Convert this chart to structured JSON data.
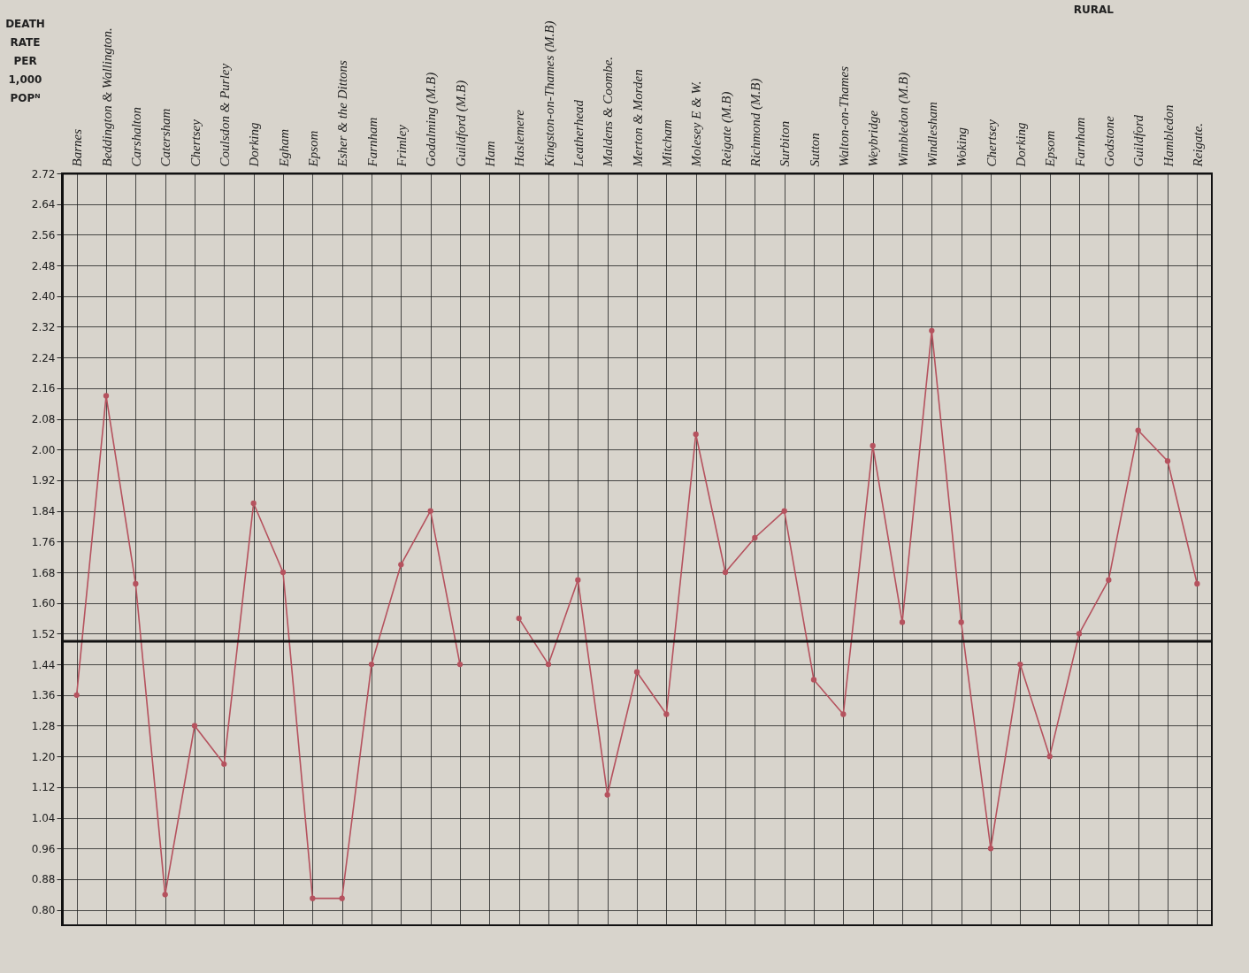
{
  "chart_data": {
    "type": "line",
    "ylabel": "DEATH RATE PER 1,000 POPᴺ",
    "categories": [
      "Barnes",
      "Beddington & Wallington.",
      "Carshalton",
      "Catersham",
      "Chertsey",
      "Coulsdon & Purley",
      "Dorking",
      "Egham",
      "Epsom",
      "Esher & the Dittons",
      "Farnham",
      "Frimley",
      "Godalming (M.B)",
      "Guildford (M.B)",
      "Ham",
      "Haslemere",
      "Kingston-on-Thames (M.B)",
      "Leatherhead",
      "Maldens & Coombe.",
      "Merton & Morden",
      "Mitcham",
      "Molesey E & W.",
      "Reigate (M.B)",
      "Richmond (M.B)",
      "Surbiton",
      "Sutton",
      "Walton-on-Thames",
      "Weybridge",
      "Wimbledon (M.B)",
      "Windlesham",
      "Woking",
      "Chertsey",
      "Dorking",
      "Epsom",
      "Farnham",
      "Godstone",
      "Guildford",
      "Hambledon",
      "Reigate."
    ],
    "series": [
      {
        "color": "#b5525e",
        "values": [
          1.36,
          2.14,
          1.65,
          0.84,
          1.28,
          1.18,
          1.86,
          1.68,
          0.83,
          0.83,
          1.44,
          1.7,
          1.84,
          1.44,
          null,
          1.56,
          1.44,
          1.66,
          1.1,
          1.42,
          1.31,
          2.04,
          1.68,
          1.77,
          1.84,
          1.4,
          1.31,
          2.01,
          1.55,
          2.31,
          1.55,
          0.96,
          1.44,
          1.2,
          1.52,
          1.66,
          2.05,
          1.97,
          1.65
        ]
      }
    ],
    "ylim": [
      0.76,
      2.72
    ],
    "yticks": [
      {
        "value": 0.8,
        "label": "0.80"
      },
      0.88,
      0.96,
      1.04,
      1.12,
      {
        "value": 1.2,
        "label": "1.20"
      },
      1.28,
      1.36,
      1.44,
      1.52,
      {
        "value": 1.6,
        "label": "1.60"
      },
      1.68,
      1.76,
      1.84,
      1.92,
      {
        "value": 2.0,
        "label": "2.00"
      },
      2.08,
      2.16,
      2.24,
      2.32,
      {
        "value": 2.4,
        "label": "2.40"
      },
      2.48,
      2.56,
      2.64,
      2.72
    ],
    "ref_lines": [
      {
        "axis": "y",
        "value": 1.5,
        "color": "#111111"
      }
    ],
    "annotations": [
      "RURAL"
    ],
    "grid": true,
    "marker": "circle",
    "line_style": "solid"
  }
}
